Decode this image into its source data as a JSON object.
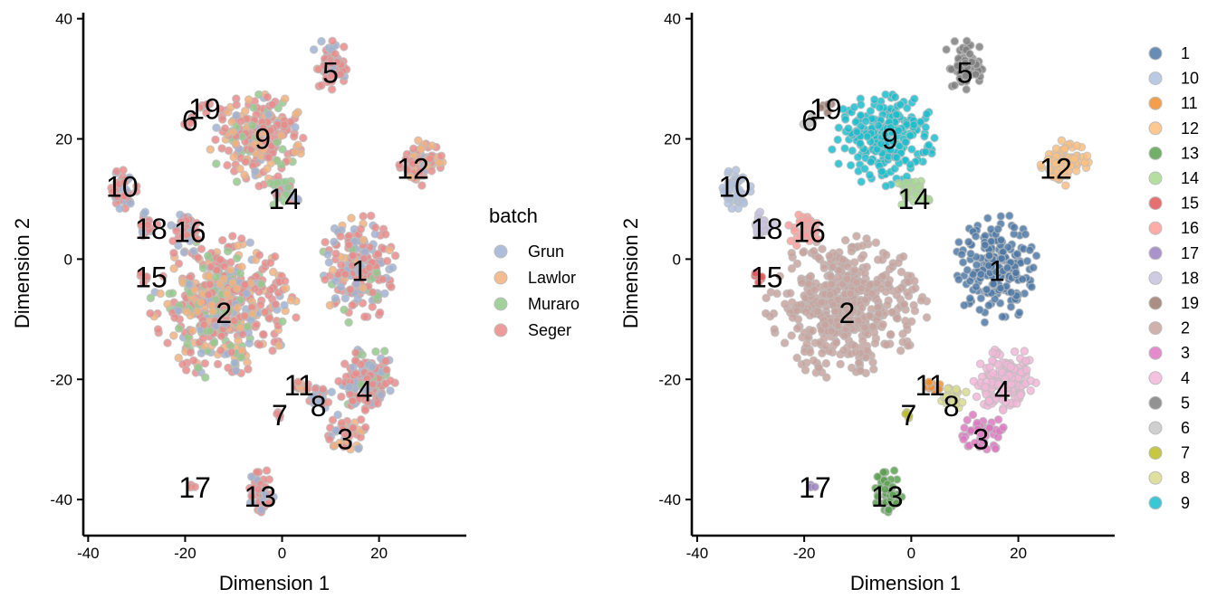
{
  "chart_data": [
    {
      "type": "scatter",
      "xlabel": "Dimension 1",
      "ylabel": "Dimension 2",
      "xlim": [
        -41,
        38
      ],
      "ylim": [
        -46,
        41
      ],
      "xticks": [
        -40,
        -20,
        0,
        20
      ],
      "yticks": [
        -40,
        -20,
        0,
        20,
        40
      ],
      "color_by": "batch",
      "legend": {
        "title": "batch",
        "placement": "right",
        "entries": [
          {
            "name": "Grun",
            "color": "#9fb2d3"
          },
          {
            "name": "Lawlor",
            "color": "#f3b27b"
          },
          {
            "name": "Muraro",
            "color": "#93c98b"
          },
          {
            "name": "Seger",
            "color": "#ea8a8a"
          }
        ]
      },
      "cluster_labels": [
        {
          "text": "1",
          "x": 16,
          "y": -2
        },
        {
          "text": "2",
          "x": -12,
          "y": -9
        },
        {
          "text": "3",
          "x": 13,
          "y": -30
        },
        {
          "text": "4",
          "x": 17,
          "y": -22
        },
        {
          "text": "5",
          "x": 10,
          "y": 31
        },
        {
          "text": "6",
          "x": -19,
          "y": 23
        },
        {
          "text": "7",
          "x": -0.5,
          "y": -26
        },
        {
          "text": "8",
          "x": 7.5,
          "y": -24.5
        },
        {
          "text": "9",
          "x": -4,
          "y": 20
        },
        {
          "text": "10",
          "x": -33,
          "y": 12
        },
        {
          "text": "11",
          "x": 3.5,
          "y": -21
        },
        {
          "text": "12",
          "x": 27,
          "y": 15
        },
        {
          "text": "13",
          "x": -4.5,
          "y": -39.5
        },
        {
          "text": "14",
          "x": 0.5,
          "y": 10
        },
        {
          "text": "15",
          "x": -27,
          "y": -3
        },
        {
          "text": "16",
          "x": -19,
          "y": 4.5
        },
        {
          "text": "17",
          "x": -18,
          "y": -38
        },
        {
          "text": "18",
          "x": -27,
          "y": 5
        },
        {
          "text": "19",
          "x": -16,
          "y": 25
        }
      ],
      "clusters": [
        {
          "id": "1",
          "cx": 15.5,
          "cy": -1.5,
          "rx": 8.5,
          "ry": 9,
          "n": 210,
          "batch_mix": {
            "Seger": 0.6,
            "Grun": 0.3,
            "Lawlor": 0.05,
            "Muraro": 0.05
          }
        },
        {
          "id": "2",
          "cx": -12,
          "cy": -8,
          "rx": 15,
          "ry": 12,
          "n": 520,
          "batch_mix": {
            "Seger": 0.45,
            "Lawlor": 0.25,
            "Grun": 0.15,
            "Muraro": 0.15
          }
        },
        {
          "id": "3",
          "cx": 13.5,
          "cy": -29,
          "rx": 4.5,
          "ry": 3.5,
          "n": 50,
          "batch_mix": {
            "Seger": 0.5,
            "Lawlor": 0.3,
            "Grun": 0.2
          }
        },
        {
          "id": "4",
          "cx": 17.5,
          "cy": -20,
          "rx": 6,
          "ry": 6,
          "n": 140,
          "batch_mix": {
            "Seger": 0.6,
            "Grun": 0.3,
            "Muraro": 0.1
          }
        },
        {
          "id": "5",
          "cx": 10,
          "cy": 32.5,
          "rx": 4,
          "ry": 4.5,
          "n": 65,
          "batch_mix": {
            "Seger": 0.65,
            "Grun": 0.25,
            "Lawlor": 0.1
          }
        },
        {
          "id": "6",
          "cx": -19,
          "cy": 22.5,
          "rx": 1.5,
          "ry": 1.5,
          "n": 6,
          "batch_mix": {
            "Seger": 1.0
          }
        },
        {
          "id": "7",
          "cx": -0.5,
          "cy": -26,
          "rx": 0.8,
          "ry": 1.2,
          "n": 4,
          "batch_mix": {
            "Seger": 1.0
          }
        },
        {
          "id": "8",
          "cx": 8,
          "cy": -23,
          "rx": 3,
          "ry": 2.5,
          "n": 25,
          "batch_mix": {
            "Grun": 0.6,
            "Seger": 0.4
          }
        },
        {
          "id": "9",
          "cx": -5,
          "cy": 20,
          "rx": 10,
          "ry": 8,
          "n": 230,
          "batch_mix": {
            "Seger": 0.5,
            "Lawlor": 0.3,
            "Grun": 0.1,
            "Muraro": 0.1
          }
        },
        {
          "id": "10",
          "cx": -33,
          "cy": 12,
          "rx": 3,
          "ry": 4,
          "n": 40,
          "batch_mix": {
            "Seger": 0.6,
            "Grun": 0.4
          }
        },
        {
          "id": "11",
          "cx": 4,
          "cy": -21,
          "rx": 1.8,
          "ry": 1.8,
          "n": 14,
          "batch_mix": {
            "Seger": 0.5,
            "Lawlor": 0.5
          }
        },
        {
          "id": "12",
          "cx": 28.5,
          "cy": 16,
          "rx": 5,
          "ry": 3.8,
          "n": 70,
          "batch_mix": {
            "Seger": 0.6,
            "Lawlor": 0.3,
            "Grun": 0.1
          }
        },
        {
          "id": "13",
          "cx": -4.5,
          "cy": -38.5,
          "rx": 2.8,
          "ry": 4,
          "n": 40,
          "batch_mix": {
            "Seger": 0.7,
            "Grun": 0.3
          }
        },
        {
          "id": "14",
          "cx": 0.5,
          "cy": 11,
          "rx": 4,
          "ry": 3,
          "n": 30,
          "batch_mix": {
            "Muraro": 0.5,
            "Seger": 0.3,
            "Grun": 0.2
          }
        },
        {
          "id": "15",
          "cx": -28.5,
          "cy": -3,
          "rx": 1,
          "ry": 1.5,
          "n": 6,
          "batch_mix": {
            "Seger": 1.0
          }
        },
        {
          "id": "16",
          "cx": -20,
          "cy": 5,
          "rx": 3.5,
          "ry": 3,
          "n": 35,
          "batch_mix": {
            "Seger": 0.7,
            "Grun": 0.3
          }
        },
        {
          "id": "17",
          "cx": -18.5,
          "cy": -38,
          "rx": 0.8,
          "ry": 1,
          "n": 3,
          "batch_mix": {
            "Seger": 1.0
          }
        },
        {
          "id": "18",
          "cx": -28,
          "cy": 5.5,
          "rx": 2.5,
          "ry": 2.5,
          "n": 20,
          "batch_mix": {
            "Seger": 0.6,
            "Grun": 0.4
          }
        },
        {
          "id": "19",
          "cx": -16,
          "cy": 25,
          "rx": 1.5,
          "ry": 1.2,
          "n": 6,
          "batch_mix": {
            "Seger": 0.7,
            "Grun": 0.3
          }
        }
      ]
    },
    {
      "type": "scatter",
      "xlabel": "Dimension 1",
      "ylabel": "Dimension 2",
      "xlim": [
        -41,
        38
      ],
      "ylim": [
        -46,
        41
      ],
      "xticks": [
        -40,
        -20,
        0,
        20
      ],
      "yticks": [
        -40,
        -20,
        0,
        20,
        40
      ],
      "color_by": "cluster",
      "legend": {
        "title": "",
        "placement": "right",
        "entries": [
          {
            "name": "1",
            "color": "#4e79a7"
          },
          {
            "name": "10",
            "color": "#aec1df"
          },
          {
            "name": "11",
            "color": "#f28e2b"
          },
          {
            "name": "12",
            "color": "#ffbe7d"
          },
          {
            "name": "13",
            "color": "#59a14f"
          },
          {
            "name": "14",
            "color": "#a7d98f"
          },
          {
            "name": "15",
            "color": "#e15759"
          },
          {
            "name": "16",
            "color": "#ff9d9a"
          },
          {
            "name": "17",
            "color": "#9b7fc2"
          },
          {
            "name": "18",
            "color": "#c8c2e0"
          },
          {
            "name": "19",
            "color": "#9c7b6f"
          },
          {
            "name": "2",
            "color": "#c9a39e"
          },
          {
            "name": "3",
            "color": "#de77c2"
          },
          {
            "name": "4",
            "color": "#f2b6d8"
          },
          {
            "name": "5",
            "color": "#7f7f7f"
          },
          {
            "name": "6",
            "color": "#c7c7c7"
          },
          {
            "name": "7",
            "color": "#bcbd22"
          },
          {
            "name": "8",
            "color": "#dbdb8d"
          },
          {
            "name": "9",
            "color": "#17becf"
          }
        ]
      }
    }
  ]
}
